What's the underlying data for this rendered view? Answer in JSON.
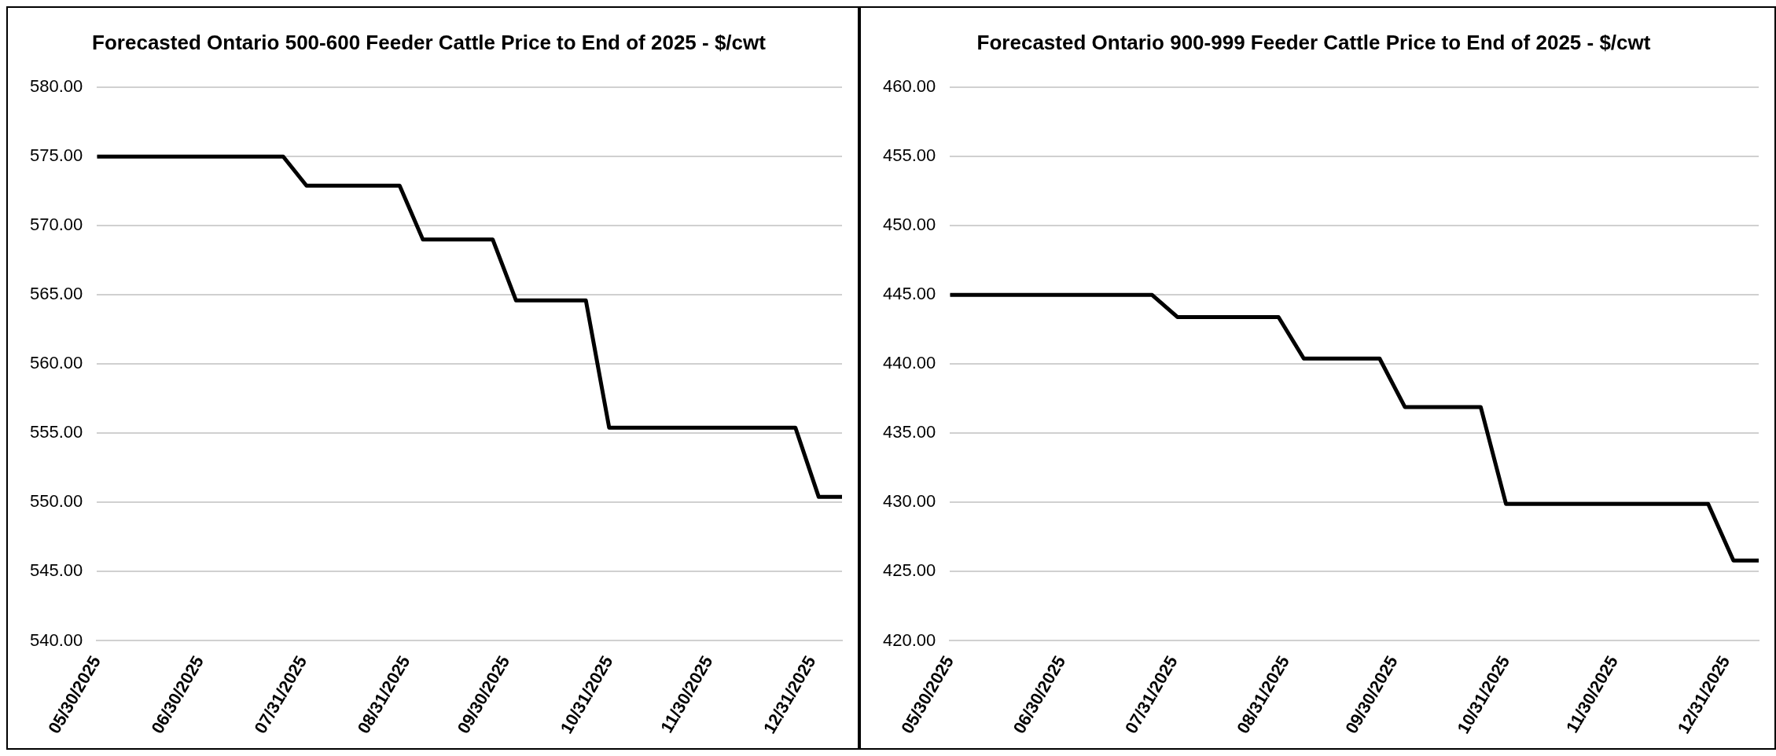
{
  "chart_data": [
    {
      "type": "line",
      "title": "Forecasted Ontario 500-600 Feeder Cattle Price to End of 2025 - $/cwt",
      "x": [
        "2025-05-30",
        "2025-07-25",
        "2025-08-01",
        "2025-08-29",
        "2025-09-05",
        "2025-09-26",
        "2025-10-03",
        "2025-10-24",
        "2025-10-31",
        "2025-12-26",
        "2026-01-02",
        "2026-01-09"
      ],
      "series": [
        {
          "color": "#000000",
          "values": [
            575.0,
            575.0,
            572.9,
            572.9,
            569.0,
            569.0,
            564.6,
            564.6,
            555.4,
            555.4,
            550.4,
            550.4
          ]
        }
      ],
      "xlim": [
        "2025-05-30",
        "2026-01-09"
      ],
      "xticks": [
        {
          "value": "2025-05-30",
          "label": "05/30/2025"
        },
        {
          "value": "2025-06-30",
          "label": "06/30/2025"
        },
        {
          "value": "2025-07-31",
          "label": "07/31/2025"
        },
        {
          "value": "2025-08-31",
          "label": "08/31/2025"
        },
        {
          "value": "2025-09-30",
          "label": "09/30/2025"
        },
        {
          "value": "2025-10-31",
          "label": "10/31/2025"
        },
        {
          "value": "2025-11-30",
          "label": "11/30/2025"
        },
        {
          "value": "2025-12-31",
          "label": "12/31/2025"
        }
      ],
      "ylim": [
        540,
        580
      ],
      "yticks": [
        {
          "value": 540,
          "label": "540.00"
        },
        {
          "value": 545,
          "label": "545.00"
        },
        {
          "value": 550,
          "label": "550.00"
        },
        {
          "value": 555,
          "label": "555.00"
        },
        {
          "value": 560,
          "label": "560.00"
        },
        {
          "value": 565,
          "label": "565.00"
        },
        {
          "value": 570,
          "label": "570.00"
        },
        {
          "value": 575,
          "label": "575.00"
        },
        {
          "value": 580,
          "label": "580.00"
        }
      ],
      "grid": "y",
      "legend": false,
      "marker": "none",
      "line_style": "solid"
    },
    {
      "type": "line",
      "title": "Forecasted Ontario 900-999 Feeder Cattle Price to End of 2025 - $/cwt",
      "x": [
        "2025-05-30",
        "2025-07-25",
        "2025-08-01",
        "2025-08-29",
        "2025-09-05",
        "2025-09-26",
        "2025-10-03",
        "2025-10-24",
        "2025-10-31",
        "2025-12-26",
        "2026-01-02",
        "2026-01-09"
      ],
      "series": [
        {
          "color": "#000000",
          "values": [
            445.0,
            445.0,
            443.4,
            443.4,
            440.4,
            440.4,
            436.9,
            436.9,
            429.9,
            429.9,
            425.8,
            425.8
          ]
        }
      ],
      "xlim": [
        "2025-05-30",
        "2026-01-09"
      ],
      "xticks": [
        {
          "value": "2025-05-30",
          "label": "05/30/2025"
        },
        {
          "value": "2025-06-30",
          "label": "06/30/2025"
        },
        {
          "value": "2025-07-31",
          "label": "07/31/2025"
        },
        {
          "value": "2025-08-31",
          "label": "08/31/2025"
        },
        {
          "value": "2025-09-30",
          "label": "09/30/2025"
        },
        {
          "value": "2025-10-31",
          "label": "10/31/2025"
        },
        {
          "value": "2025-11-30",
          "label": "11/30/2025"
        },
        {
          "value": "2025-12-31",
          "label": "12/31/2025"
        }
      ],
      "ylim": [
        420,
        460
      ],
      "yticks": [
        {
          "value": 420,
          "label": "420.00"
        },
        {
          "value": 425,
          "label": "425.00"
        },
        {
          "value": 430,
          "label": "430.00"
        },
        {
          "value": 435,
          "label": "435.00"
        },
        {
          "value": 440,
          "label": "440.00"
        },
        {
          "value": 445,
          "label": "445.00"
        },
        {
          "value": 450,
          "label": "450.00"
        },
        {
          "value": 455,
          "label": "455.00"
        },
        {
          "value": 460,
          "label": "460.00"
        }
      ],
      "grid": "y",
      "legend": false,
      "marker": "none",
      "line_style": "solid"
    }
  ]
}
